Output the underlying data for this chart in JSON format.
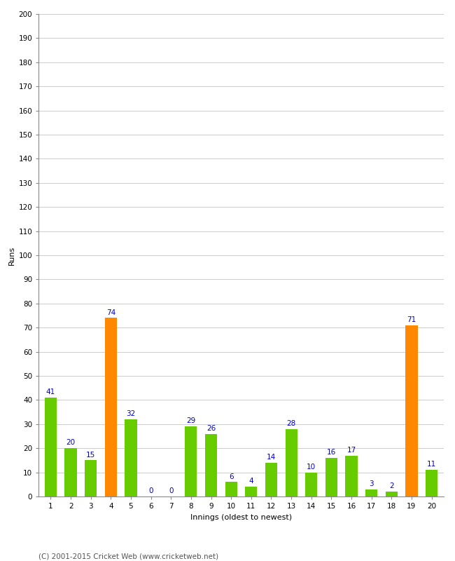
{
  "innings": [
    1,
    2,
    3,
    4,
    5,
    6,
    7,
    8,
    9,
    10,
    11,
    12,
    13,
    14,
    15,
    16,
    17,
    18,
    19,
    20
  ],
  "runs": [
    41,
    20,
    15,
    74,
    32,
    0,
    0,
    29,
    26,
    6,
    4,
    14,
    28,
    10,
    16,
    17,
    3,
    2,
    71,
    11
  ],
  "colors": [
    "#66cc00",
    "#66cc00",
    "#66cc00",
    "#ff8800",
    "#66cc00",
    "#66cc00",
    "#66cc00",
    "#66cc00",
    "#66cc00",
    "#66cc00",
    "#66cc00",
    "#66cc00",
    "#66cc00",
    "#66cc00",
    "#66cc00",
    "#66cc00",
    "#66cc00",
    "#66cc00",
    "#ff8800",
    "#66cc00"
  ],
  "xlabel": "Innings (oldest to newest)",
  "ylabel": "Runs",
  "ylim": [
    0,
    200
  ],
  "yticks": [
    0,
    10,
    20,
    30,
    40,
    50,
    60,
    70,
    80,
    90,
    100,
    110,
    120,
    130,
    140,
    150,
    160,
    170,
    180,
    190,
    200
  ],
  "footnote": "(C) 2001-2015 Cricket Web (www.cricketweb.net)",
  "label_color": "#0000cc",
  "label_fontsize": 7.5,
  "axis_label_fontsize": 8,
  "tick_fontsize": 7.5,
  "footnote_fontsize": 7.5,
  "background_color": "#ffffff",
  "grid_color": "#cccccc",
  "bar_width": 0.6
}
